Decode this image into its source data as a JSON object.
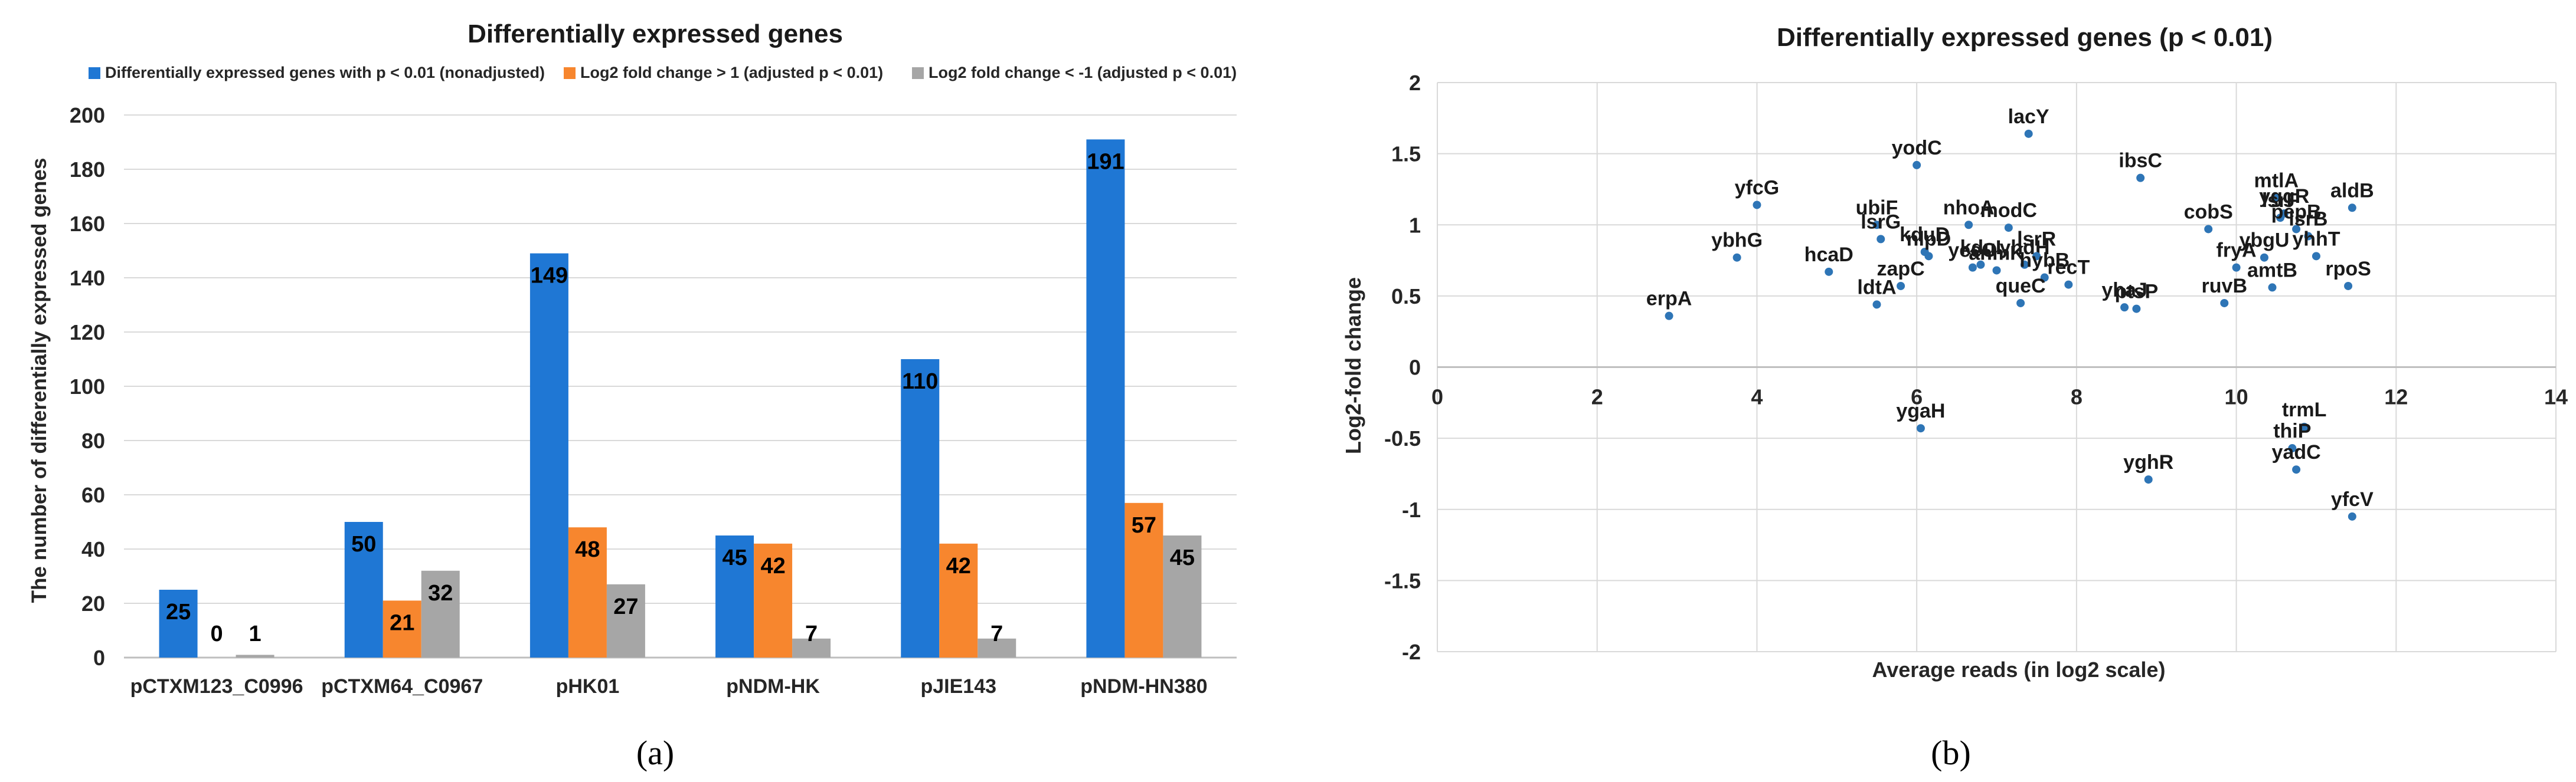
{
  "panels": {
    "a": "(a)",
    "b": "(b)"
  },
  "chart_data": [
    {
      "type": "bar",
      "title": "Differentially expressed genes",
      "xlabel": "",
      "ylabel": "The number of differentially expressed genes",
      "ylim": [
        0,
        200
      ],
      "yticks": [
        0,
        20,
        40,
        60,
        80,
        100,
        120,
        140,
        160,
        180,
        200
      ],
      "grid": true,
      "legend": "top",
      "categories": [
        "pCTXM123_C0996",
        "pCTXM64_C0967",
        "pHK01",
        "pNDM-HK",
        "pJIE143",
        "pNDM-HN380"
      ],
      "series": [
        {
          "name": "Differentially expressed genes with p < 0.01 (nonadjusted)",
          "color": "#1f77d4",
          "values": [
            25,
            50,
            149,
            45,
            110,
            191
          ]
        },
        {
          "name": "Log2 fold change > 1 (adjusted p < 0.01)",
          "color": "#f7862e",
          "values": [
            0,
            21,
            48,
            42,
            42,
            57
          ]
        },
        {
          "name": "Log2 fold change  < -1 (adjusted p < 0.01)",
          "color": "#a6a6a6",
          "values": [
            1,
            32,
            27,
            7,
            7,
            45
          ]
        }
      ],
      "data_labels": [
        [
          "25",
          "50",
          "149",
          "45",
          "110",
          "191"
        ],
        [
          "0",
          "21",
          "48",
          "42",
          "42",
          "57"
        ],
        [
          "1",
          "32",
          "27",
          "7",
          "7",
          "45"
        ]
      ]
    },
    {
      "type": "scatter",
      "title": "Differentially expressed genes (p < 0.01)",
      "xlabel": "Average reads (in log2 scale)",
      "ylabel": "Log2-fold change",
      "xlim": [
        0,
        14
      ],
      "ylim": [
        -2,
        2
      ],
      "xticks": [
        0,
        2,
        4,
        6,
        8,
        10,
        12,
        14
      ],
      "yticks": [
        -2,
        -1.5,
        -1,
        -0.5,
        0,
        0.5,
        1,
        1.5,
        2
      ],
      "grid": true,
      "color": "#2e75b6",
      "points": [
        {
          "label": "erpA",
          "x": 2.9,
          "y": 0.36
        },
        {
          "label": "ybhG",
          "x": 3.75,
          "y": 0.77
        },
        {
          "label": "yfcG",
          "x": 4.0,
          "y": 1.14
        },
        {
          "label": "ubiF",
          "x": 5.5,
          "y": 1.0
        },
        {
          "label": "lsrG",
          "x": 5.55,
          "y": 0.9
        },
        {
          "label": "hcaD",
          "x": 4.9,
          "y": 0.67
        },
        {
          "label": "zapC",
          "x": 5.8,
          "y": 0.57
        },
        {
          "label": "ldtA",
          "x": 5.5,
          "y": 0.44
        },
        {
          "label": "yodC",
          "x": 6.0,
          "y": 1.42
        },
        {
          "label": "kduD",
          "x": 6.1,
          "y": 0.81
        },
        {
          "label": "nlpD",
          "x": 6.15,
          "y": 0.78
        },
        {
          "label": "nhoA",
          "x": 6.65,
          "y": 1.0
        },
        {
          "label": "yeeO",
          "x": 6.7,
          "y": 0.7
        },
        {
          "label": "kduI",
          "x": 6.8,
          "y": 0.72
        },
        {
          "label": "anmK",
          "x": 7.0,
          "y": 0.68
        },
        {
          "label": "modC",
          "x": 7.15,
          "y": 0.98
        },
        {
          "label": "lacY",
          "x": 7.4,
          "y": 1.64
        },
        {
          "label": "yhdH",
          "x": 7.35,
          "y": 0.72
        },
        {
          "label": "lsrR",
          "x": 7.5,
          "y": 0.78
        },
        {
          "label": "hybB",
          "x": 7.6,
          "y": 0.63
        },
        {
          "label": "recT",
          "x": 7.9,
          "y": 0.58
        },
        {
          "label": "queC",
          "x": 7.3,
          "y": 0.45
        },
        {
          "label": "yhaJ",
          "x": 8.6,
          "y": 0.42
        },
        {
          "label": "ptsP",
          "x": 8.75,
          "y": 0.41
        },
        {
          "label": "ibsC",
          "x": 8.8,
          "y": 1.33
        },
        {
          "label": "ruvB",
          "x": 9.85,
          "y": 0.45
        },
        {
          "label": "cobS",
          "x": 9.65,
          "y": 0.97
        },
        {
          "label": "fryA",
          "x": 10.0,
          "y": 0.7
        },
        {
          "label": "ybgU",
          "x": 10.35,
          "y": 0.77
        },
        {
          "label": "amtB",
          "x": 10.45,
          "y": 0.56
        },
        {
          "label": "mtlA",
          "x": 10.5,
          "y": 1.19
        },
        {
          "label": "lsrF",
          "x": 10.55,
          "y": 1.05
        },
        {
          "label": "yggR",
          "x": 10.6,
          "y": 1.08
        },
        {
          "label": "pepB",
          "x": 10.75,
          "y": 0.97
        },
        {
          "label": "lsrB",
          "x": 10.9,
          "y": 0.92
        },
        {
          "label": "yhhT",
          "x": 11.0,
          "y": 0.78
        },
        {
          "label": "aldB",
          "x": 11.45,
          "y": 1.12
        },
        {
          "label": "rpoS",
          "x": 11.4,
          "y": 0.57
        },
        {
          "label": "ygaH",
          "x": 6.05,
          "y": -0.43
        },
        {
          "label": "trmL",
          "x": 10.85,
          "y": -0.42
        },
        {
          "label": "thiP",
          "x": 10.7,
          "y": -0.57
        },
        {
          "label": "yadC",
          "x": 10.75,
          "y": -0.72
        },
        {
          "label": "yghR",
          "x": 8.9,
          "y": -0.79
        },
        {
          "label": "yfcV",
          "x": 11.45,
          "y": -1.05
        }
      ]
    }
  ]
}
